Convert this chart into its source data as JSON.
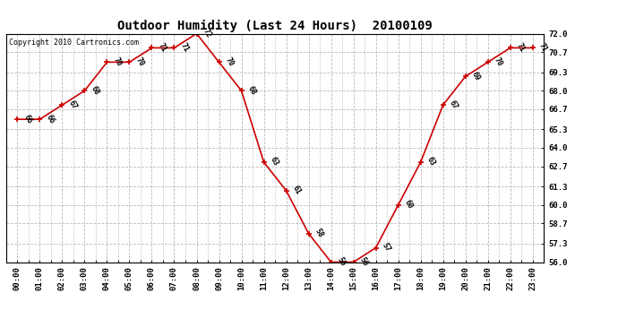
{
  "title": "Outdoor Humidity (Last 24 Hours)  20100109",
  "copyright_text": "Copyright 2010 Cartronics.com",
  "hours": [
    "00:00",
    "01:00",
    "02:00",
    "03:00",
    "04:00",
    "05:00",
    "06:00",
    "07:00",
    "08:00",
    "09:00",
    "10:00",
    "11:00",
    "12:00",
    "13:00",
    "14:00",
    "15:00",
    "16:00",
    "17:00",
    "18:00",
    "19:00",
    "20:00",
    "21:00",
    "22:00",
    "23:00"
  ],
  "values": [
    66,
    66,
    67,
    68,
    70,
    70,
    71,
    71,
    72,
    70,
    68,
    63,
    61,
    58,
    56,
    56,
    57,
    60,
    63,
    67,
    69,
    70,
    71,
    71
  ],
  "line_color": "#cc0000",
  "marker": "+",
  "marker_size": 4,
  "marker_linewidth": 1.2,
  "background_color": "#ffffff",
  "grid_color": "#bbbbbb",
  "ylim_min": 56.0,
  "ylim_max": 72.0,
  "yticks": [
    56.0,
    57.3,
    58.7,
    60.0,
    61.3,
    62.7,
    64.0,
    65.3,
    66.7,
    68.0,
    69.3,
    70.7,
    72.0
  ],
  "title_fontsize": 10,
  "label_fontsize": 6,
  "tick_fontsize": 6.5,
  "copyright_fontsize": 6,
  "line_width": 1.2
}
